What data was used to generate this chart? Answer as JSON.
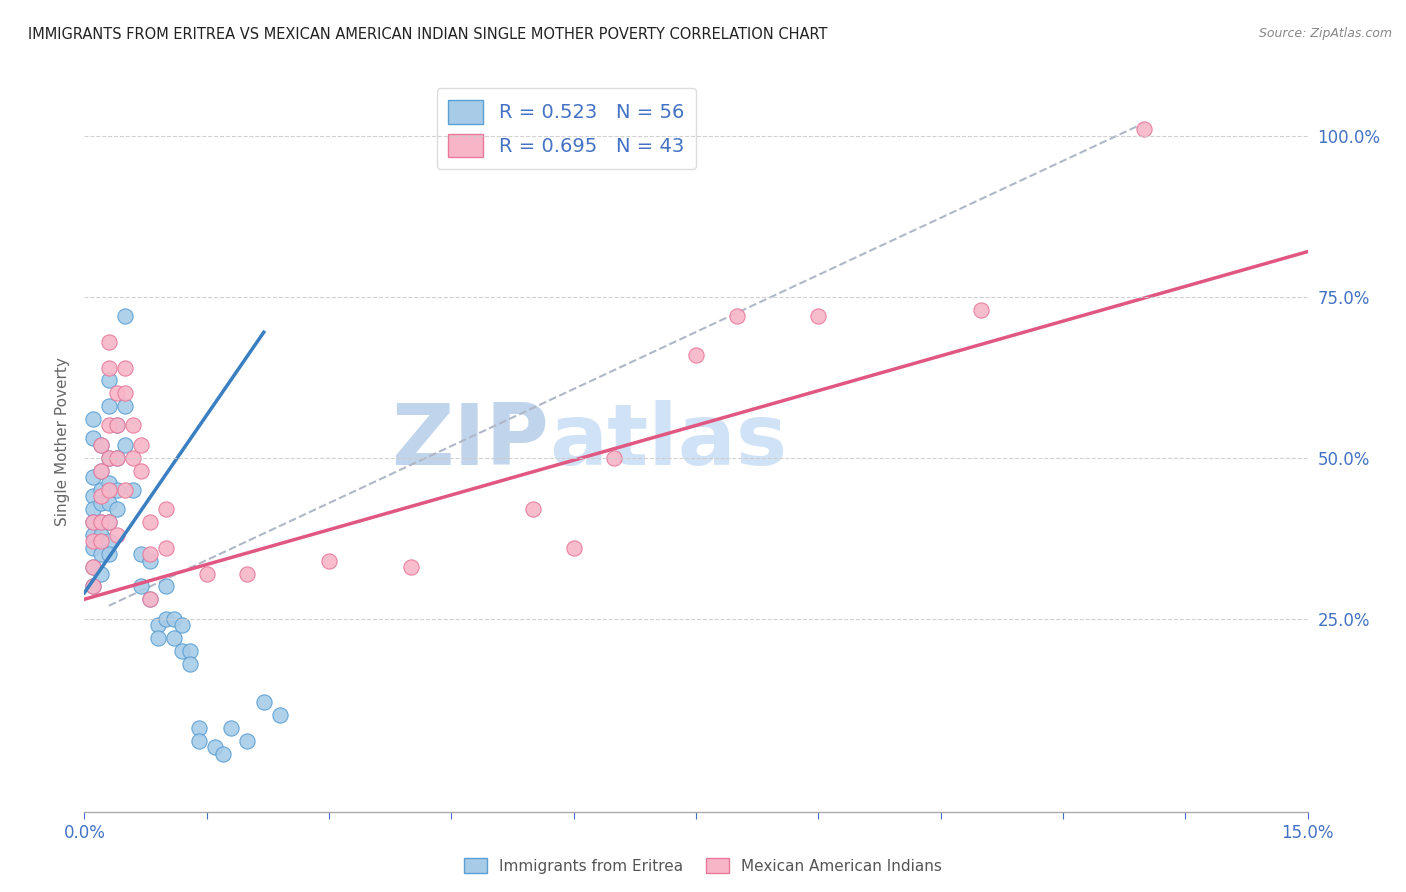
{
  "title": "IMMIGRANTS FROM ERITREA VS MEXICAN AMERICAN INDIAN SINGLE MOTHER POVERTY CORRELATION CHART",
  "source": "Source: ZipAtlas.com",
  "ylabel": "Single Mother Poverty",
  "xmin": 0.0,
  "xmax": 0.15,
  "ymin": -0.05,
  "ymax": 1.1,
  "yticks_right": [
    0.25,
    0.5,
    0.75,
    1.0
  ],
  "ytick_labels_right": [
    "25.0%",
    "50.0%",
    "75.0%",
    "100.0%"
  ],
  "xticks": [
    0.0,
    0.015,
    0.03,
    0.045,
    0.06,
    0.075,
    0.09,
    0.105,
    0.12,
    0.135,
    0.15
  ],
  "xtick_labels": [
    "0.0%",
    "",
    "",
    "",
    "",
    "",
    "",
    "",
    "",
    "",
    "15.0%"
  ],
  "blue_R": 0.523,
  "blue_N": 56,
  "pink_R": 0.695,
  "pink_N": 43,
  "blue_color": "#a8cce8",
  "pink_color": "#f7b6c8",
  "blue_edge_color": "#5a9fd4",
  "pink_edge_color": "#e8799a",
  "blue_line_color": "#3a7fc1",
  "pink_line_color": "#e05882",
  "blue_scatter": [
    [
      0.001,
      0.56
    ],
    [
      0.001,
      0.53
    ],
    [
      0.001,
      0.47
    ],
    [
      0.001,
      0.44
    ],
    [
      0.001,
      0.42
    ],
    [
      0.001,
      0.4
    ],
    [
      0.001,
      0.38
    ],
    [
      0.001,
      0.36
    ],
    [
      0.001,
      0.33
    ],
    [
      0.001,
      0.3
    ],
    [
      0.002,
      0.52
    ],
    [
      0.002,
      0.48
    ],
    [
      0.002,
      0.45
    ],
    [
      0.002,
      0.43
    ],
    [
      0.002,
      0.4
    ],
    [
      0.002,
      0.38
    ],
    [
      0.002,
      0.35
    ],
    [
      0.002,
      0.32
    ],
    [
      0.003,
      0.62
    ],
    [
      0.003,
      0.58
    ],
    [
      0.003,
      0.5
    ],
    [
      0.003,
      0.46
    ],
    [
      0.003,
      0.43
    ],
    [
      0.003,
      0.4
    ],
    [
      0.003,
      0.37
    ],
    [
      0.003,
      0.35
    ],
    [
      0.004,
      0.55
    ],
    [
      0.004,
      0.5
    ],
    [
      0.004,
      0.45
    ],
    [
      0.004,
      0.42
    ],
    [
      0.005,
      0.72
    ],
    [
      0.005,
      0.58
    ],
    [
      0.005,
      0.52
    ],
    [
      0.006,
      0.45
    ],
    [
      0.007,
      0.35
    ],
    [
      0.007,
      0.3
    ],
    [
      0.008,
      0.34
    ],
    [
      0.008,
      0.28
    ],
    [
      0.009,
      0.24
    ],
    [
      0.009,
      0.22
    ],
    [
      0.01,
      0.3
    ],
    [
      0.01,
      0.25
    ],
    [
      0.011,
      0.25
    ],
    [
      0.011,
      0.22
    ],
    [
      0.012,
      0.24
    ],
    [
      0.012,
      0.2
    ],
    [
      0.013,
      0.2
    ],
    [
      0.013,
      0.18
    ],
    [
      0.014,
      0.08
    ],
    [
      0.014,
      0.06
    ],
    [
      0.016,
      0.05
    ],
    [
      0.017,
      0.04
    ],
    [
      0.018,
      0.08
    ],
    [
      0.02,
      0.06
    ],
    [
      0.022,
      0.12
    ],
    [
      0.024,
      0.1
    ]
  ],
  "pink_scatter": [
    [
      0.001,
      0.4
    ],
    [
      0.001,
      0.37
    ],
    [
      0.001,
      0.33
    ],
    [
      0.001,
      0.3
    ],
    [
      0.002,
      0.52
    ],
    [
      0.002,
      0.48
    ],
    [
      0.002,
      0.44
    ],
    [
      0.002,
      0.4
    ],
    [
      0.002,
      0.37
    ],
    [
      0.003,
      0.68
    ],
    [
      0.003,
      0.64
    ],
    [
      0.003,
      0.55
    ],
    [
      0.003,
      0.5
    ],
    [
      0.003,
      0.45
    ],
    [
      0.003,
      0.4
    ],
    [
      0.004,
      0.6
    ],
    [
      0.004,
      0.55
    ],
    [
      0.004,
      0.5
    ],
    [
      0.004,
      0.38
    ],
    [
      0.005,
      0.64
    ],
    [
      0.005,
      0.6
    ],
    [
      0.005,
      0.45
    ],
    [
      0.006,
      0.55
    ],
    [
      0.006,
      0.5
    ],
    [
      0.007,
      0.52
    ],
    [
      0.007,
      0.48
    ],
    [
      0.008,
      0.4
    ],
    [
      0.008,
      0.35
    ],
    [
      0.008,
      0.28
    ],
    [
      0.01,
      0.42
    ],
    [
      0.01,
      0.36
    ],
    [
      0.015,
      0.32
    ],
    [
      0.02,
      0.32
    ],
    [
      0.03,
      0.34
    ],
    [
      0.04,
      0.33
    ],
    [
      0.055,
      0.42
    ],
    [
      0.06,
      0.36
    ],
    [
      0.065,
      0.5
    ],
    [
      0.075,
      0.66
    ],
    [
      0.08,
      0.72
    ],
    [
      0.09,
      0.72
    ],
    [
      0.11,
      0.73
    ],
    [
      0.13,
      1.01
    ]
  ],
  "watermark_left": "ZIP",
  "watermark_right": "atlas",
  "watermark_color_left": "#b8cfe8",
  "watermark_color_right": "#c8daf0",
  "grid_color": "#cccccc",
  "bg_color": "#ffffff"
}
